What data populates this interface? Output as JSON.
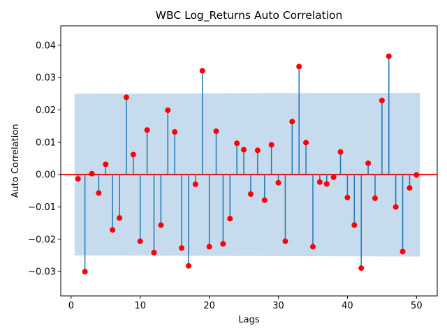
{
  "chart_data": {
    "type": "stem",
    "title": "WBC Log_Returns Auto Correlation",
    "xlabel": "Lags",
    "ylabel": "Auto Correlation",
    "xlim": [
      -1.5,
      53
    ],
    "ylim": [
      -0.0375,
      0.046
    ],
    "xticks": [
      0,
      10,
      20,
      30,
      40,
      50
    ],
    "yticks": [
      -0.03,
      -0.02,
      -0.01,
      0.0,
      0.01,
      0.02,
      0.03,
      0.04
    ],
    "ytick_labels": [
      "−0.03",
      "−0.02",
      "−0.01",
      "0.00",
      "0.01",
      "0.02",
      "0.03",
      "0.04"
    ],
    "confidence_band": {
      "x": [
        0.5,
        50.5
      ],
      "lower_start": -0.025,
      "lower_end": -0.0253,
      "upper_start": 0.025,
      "upper_end": 0.0253,
      "color": "#c6dbed"
    },
    "baseline": {
      "y": 0,
      "color": "#e60000"
    },
    "stem_color": "#1f77b4",
    "marker_color": "#ff0000",
    "lags": [
      1,
      2,
      3,
      4,
      5,
      6,
      7,
      8,
      9,
      10,
      11,
      12,
      13,
      14,
      15,
      16,
      17,
      18,
      19,
      20,
      21,
      22,
      23,
      24,
      25,
      26,
      27,
      28,
      29,
      30,
      31,
      32,
      33,
      34,
      35,
      36,
      37,
      38,
      39,
      40,
      41,
      42,
      43,
      44,
      45,
      46,
      47,
      48,
      49,
      50
    ],
    "values": [
      -0.0013,
      -0.03,
      0.0003,
      -0.0057,
      0.0032,
      -0.0171,
      -0.0134,
      0.0239,
      0.0062,
      -0.0206,
      0.0138,
      -0.0241,
      -0.0156,
      0.0199,
      0.0132,
      -0.0227,
      -0.0282,
      -0.003,
      0.0321,
      -0.0223,
      0.0134,
      -0.0214,
      -0.0136,
      0.0097,
      0.0077,
      -0.006,
      0.0075,
      -0.0079,
      0.0092,
      -0.0025,
      -0.0206,
      0.0164,
      0.0334,
      0.0099,
      -0.0223,
      -0.0023,
      -0.0029,
      -0.0008,
      0.007,
      -0.0071,
      -0.0156,
      -0.0289,
      0.0035,
      -0.0073,
      0.0229,
      0.0366,
      -0.01,
      -0.0238,
      -0.0041,
      -0.0001
    ]
  }
}
